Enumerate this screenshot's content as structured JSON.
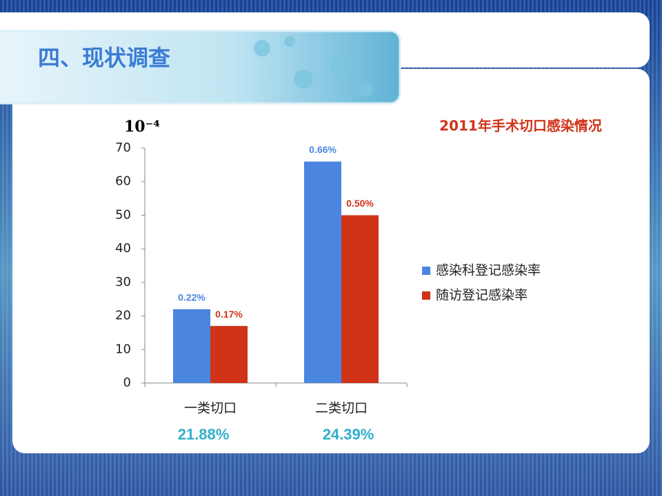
{
  "header": {
    "title": "四、现状调查"
  },
  "chart_data": {
    "type": "bar",
    "title": "2011年手术切口感染情况",
    "y_unit": "10⁻⁴",
    "categories": [
      "一类切口",
      "二类切口"
    ],
    "series": [
      {
        "name": "感染科登记感染率",
        "color": "#4a86e0",
        "values": [
          22,
          66
        ],
        "value_labels": [
          "0.22%",
          "0.66%"
        ]
      },
      {
        "name": "随访登记感染率",
        "color": "#d03318",
        "values": [
          17,
          50
        ],
        "value_labels": [
          "0.17%",
          "0.50%"
        ]
      }
    ],
    "annotations": [
      "21.88%",
      "24.39%"
    ],
    "ylim": [
      0,
      70
    ],
    "yticks": [
      0,
      10,
      20,
      30,
      40,
      50,
      60,
      70
    ],
    "grid": false,
    "legend": "right"
  }
}
